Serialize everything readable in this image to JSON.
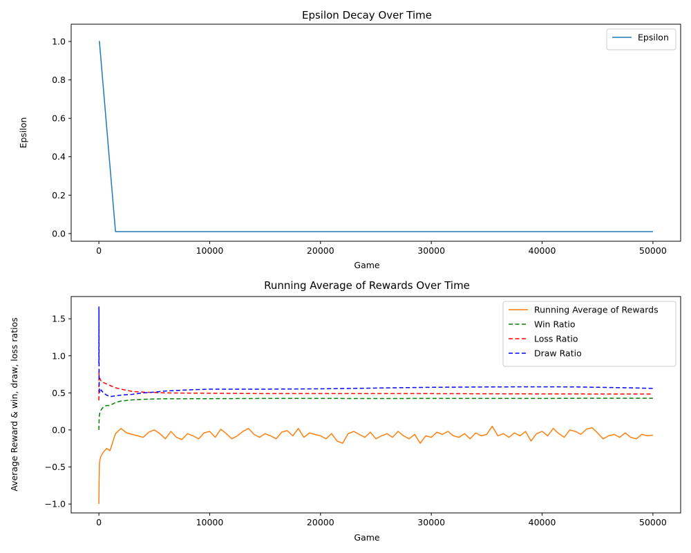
{
  "chart_data": [
    {
      "type": "line",
      "title": "Epsilon Decay Over Time",
      "xlabel": "Game",
      "ylabel": "Epsilon",
      "xlim": [
        -2500,
        52500
      ],
      "ylim": [
        -0.04,
        1.09
      ],
      "xticks": [
        0,
        10000,
        20000,
        30000,
        40000,
        50000
      ],
      "xtick_labels": [
        "0",
        "10000",
        "20000",
        "30000",
        "40000",
        "50000"
      ],
      "yticks": [
        0.0,
        0.2,
        0.4,
        0.6,
        0.8,
        1.0
      ],
      "ytick_labels": [
        "0.0",
        "0.2",
        "0.4",
        "0.6",
        "0.8",
        "1.0"
      ],
      "grid": false,
      "legend_position": "top-right",
      "series": [
        {
          "name": "Epsilon",
          "color": "#1f77b4",
          "style": "solid",
          "x": [
            0,
            50,
            1500,
            50000
          ],
          "y": [
            1.0,
            1.0,
            0.01,
            0.01
          ]
        }
      ]
    },
    {
      "type": "line",
      "title": "Running Average of Rewards Over Time",
      "xlabel": "Game",
      "ylabel": "Average Reward & win, draw, loss ratios",
      "xlim": [
        -2500,
        52500
      ],
      "ylim": [
        -1.12,
        1.8
      ],
      "xticks": [
        0,
        10000,
        20000,
        30000,
        40000,
        50000
      ],
      "xtick_labels": [
        "0",
        "10000",
        "20000",
        "30000",
        "40000",
        "50000"
      ],
      "yticks": [
        -1.0,
        -0.5,
        0.0,
        0.5,
        1.0,
        1.5
      ],
      "ytick_labels": [
        "−1.0",
        "−0.5",
        "0.0",
        "0.5",
        "1.0",
        "1.5"
      ],
      "grid": false,
      "legend_position": "top-right",
      "series": [
        {
          "name": "Running Average of Rewards",
          "color": "#ff7f0e",
          "style": "solid",
          "x": [
            0,
            20,
            50,
            100,
            200,
            400,
            700,
            1000,
            1500,
            2000,
            2500,
            3000,
            3500,
            4000,
            4500,
            5000,
            5500,
            6000,
            6500,
            7000,
            7500,
            8000,
            8500,
            9000,
            9500,
            10000,
            10500,
            11000,
            11500,
            12000,
            12500,
            13000,
            13500,
            14000,
            14500,
            15000,
            15500,
            16000,
            16500,
            17000,
            17500,
            18000,
            18500,
            19000,
            19500,
            20000,
            20500,
            21000,
            21500,
            22000,
            22500,
            23000,
            23500,
            24000,
            24500,
            25000,
            25500,
            26000,
            26500,
            27000,
            27500,
            28000,
            28500,
            29000,
            29500,
            30000,
            30500,
            31000,
            31500,
            32000,
            32500,
            33000,
            33500,
            34000,
            34500,
            35000,
            35500,
            36000,
            36500,
            37000,
            37500,
            38000,
            38500,
            39000,
            39500,
            40000,
            40500,
            41000,
            41500,
            42000,
            42500,
            43000,
            43500,
            44000,
            44500,
            45000,
            45500,
            46000,
            46500,
            47000,
            47500,
            48000,
            48500,
            49000,
            49500,
            50000
          ],
          "y": [
            -1.0,
            -0.7,
            -0.45,
            -0.4,
            -0.35,
            -0.3,
            -0.25,
            -0.28,
            -0.05,
            0.02,
            -0.04,
            -0.06,
            -0.08,
            -0.1,
            -0.03,
            0.0,
            -0.05,
            -0.12,
            -0.02,
            -0.1,
            -0.13,
            -0.05,
            -0.08,
            -0.12,
            -0.04,
            -0.02,
            -0.1,
            0.01,
            -0.05,
            -0.12,
            -0.08,
            -0.02,
            0.02,
            -0.06,
            -0.1,
            -0.05,
            -0.08,
            -0.12,
            -0.03,
            -0.01,
            -0.08,
            0.02,
            -0.1,
            -0.04,
            -0.06,
            -0.08,
            -0.12,
            -0.05,
            -0.15,
            -0.18,
            -0.05,
            -0.02,
            -0.06,
            -0.1,
            -0.03,
            -0.12,
            -0.08,
            -0.05,
            -0.1,
            -0.02,
            -0.08,
            -0.12,
            -0.06,
            -0.18,
            -0.08,
            -0.1,
            -0.03,
            -0.06,
            -0.02,
            -0.08,
            -0.1,
            -0.05,
            -0.12,
            -0.04,
            -0.08,
            -0.06,
            0.05,
            -0.08,
            -0.05,
            -0.1,
            -0.04,
            -0.08,
            -0.02,
            -0.15,
            -0.05,
            -0.02,
            -0.08,
            0.02,
            -0.05,
            -0.1,
            0.0,
            -0.02,
            -0.06,
            0.01,
            0.03,
            -0.04,
            -0.12,
            -0.08,
            -0.06,
            -0.1,
            -0.04,
            -0.1,
            -0.12,
            -0.06,
            -0.08,
            -0.07
          ]
        },
        {
          "name": "Win Ratio",
          "color": "#008000",
          "style": "dashed",
          "x": [
            0,
            20,
            50,
            100,
            200,
            400,
            700,
            1000,
            1500,
            2000,
            3000,
            4000,
            5000,
            6000,
            8000,
            10000,
            15000,
            20000,
            25000,
            30000,
            35000,
            40000,
            45000,
            50000
          ],
          "y": [
            0.0,
            0.12,
            0.2,
            0.24,
            0.27,
            0.31,
            0.33,
            0.33,
            0.37,
            0.39,
            0.405,
            0.413,
            0.418,
            0.421,
            0.421,
            0.422,
            0.425,
            0.425,
            0.424,
            0.425,
            0.425,
            0.425,
            0.428,
            0.427
          ]
        },
        {
          "name": "Loss Ratio",
          "color": "#ff0000",
          "style": "dashed",
          "x": [
            0,
            10,
            20,
            30,
            50,
            100,
            200,
            400,
            700,
            1000,
            1500,
            2000,
            3000,
            4000,
            5000,
            6000,
            8000,
            10000,
            15000,
            20000,
            25000,
            30000,
            35000,
            40000,
            45000,
            50000
          ],
          "y": [
            0.4,
            0.8,
            0.72,
            0.68,
            0.7,
            0.69,
            0.66,
            0.64,
            0.62,
            0.6,
            0.57,
            0.55,
            0.52,
            0.51,
            0.505,
            0.5,
            0.497,
            0.495,
            0.49,
            0.49,
            0.49,
            0.49,
            0.488,
            0.486,
            0.485,
            0.485
          ]
        },
        {
          "name": "Draw Ratio",
          "color": "#0000ff",
          "style": "dashed",
          "x": [
            0,
            5,
            10,
            20,
            30,
            50,
            100,
            200,
            400,
            700,
            1000,
            1500,
            2000,
            3000,
            4000,
            5000,
            6000,
            8000,
            10000,
            15000,
            20000,
            25000,
            30000,
            35000,
            40000,
            43000,
            45000,
            48000,
            50000
          ],
          "y": [
            0.9,
            1.66,
            1.2,
            0.75,
            0.6,
            0.52,
            0.5,
            0.54,
            0.5,
            0.47,
            0.45,
            0.46,
            0.47,
            0.48,
            0.5,
            0.51,
            0.525,
            0.54,
            0.55,
            0.55,
            0.555,
            0.565,
            0.575,
            0.58,
            0.582,
            0.58,
            0.575,
            0.568,
            0.56
          ]
        }
      ]
    }
  ]
}
